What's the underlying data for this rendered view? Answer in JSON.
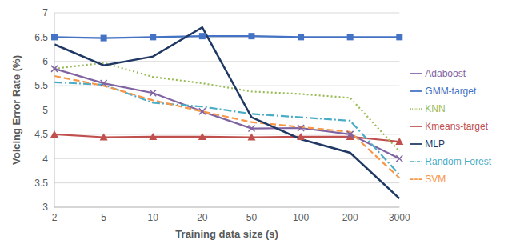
{
  "chart_data": {
    "type": "line",
    "x_label": "Training data size (s)",
    "y_label": "Voicing Error Rate (%)",
    "categories": [
      "2",
      "5",
      "10",
      "20",
      "50",
      "100",
      "200",
      "3000"
    ],
    "ylim": [
      3,
      7
    ],
    "yticks": [
      3,
      3.5,
      4,
      4.5,
      5,
      5.5,
      6,
      6.5,
      7
    ],
    "grid": true,
    "legend": "right",
    "series": [
      {
        "name": "GMM-target",
        "color": "#4472c4",
        "marker": "square",
        "line_style": "solid",
        "values": [
          6.5,
          6.48,
          6.5,
          6.52,
          6.52,
          6.5,
          6.5,
          6.5
        ]
      },
      {
        "name": "Kmeans-target",
        "color": "#c0504d",
        "marker": "triangle",
        "line_style": "solid",
        "values": [
          4.5,
          4.44,
          4.45,
          4.45,
          4.44,
          4.45,
          4.45,
          4.35
        ]
      },
      {
        "name": "KNN",
        "color": "#9bbb59",
        "marker": "none",
        "line_style": "dotted",
        "values": [
          5.85,
          5.97,
          5.68,
          5.55,
          5.38,
          5.33,
          5.25,
          4.15
        ]
      },
      {
        "name": "Adaboost",
        "color": "#8064a2",
        "marker": "x",
        "line_style": "solid",
        "values": [
          5.85,
          5.55,
          5.35,
          4.97,
          4.62,
          4.63,
          4.5,
          4.0
        ]
      },
      {
        "name": "Random Forest",
        "color": "#4bacc6",
        "marker": "none",
        "line_style": "dashdot",
        "values": [
          5.57,
          5.52,
          5.15,
          5.07,
          4.92,
          4.85,
          4.78,
          3.67
        ]
      },
      {
        "name": "SVM",
        "color": "#f79646",
        "marker": "none",
        "line_style": "dashed",
        "values": [
          5.7,
          5.5,
          5.2,
          4.97,
          4.75,
          4.65,
          4.55,
          3.6
        ]
      },
      {
        "name": "MLP",
        "color": "#1f3864",
        "marker": "none",
        "line_style": "solid",
        "values": [
          6.35,
          5.92,
          6.1,
          6.7,
          4.85,
          4.4,
          4.12,
          3.18
        ]
      }
    ]
  }
}
